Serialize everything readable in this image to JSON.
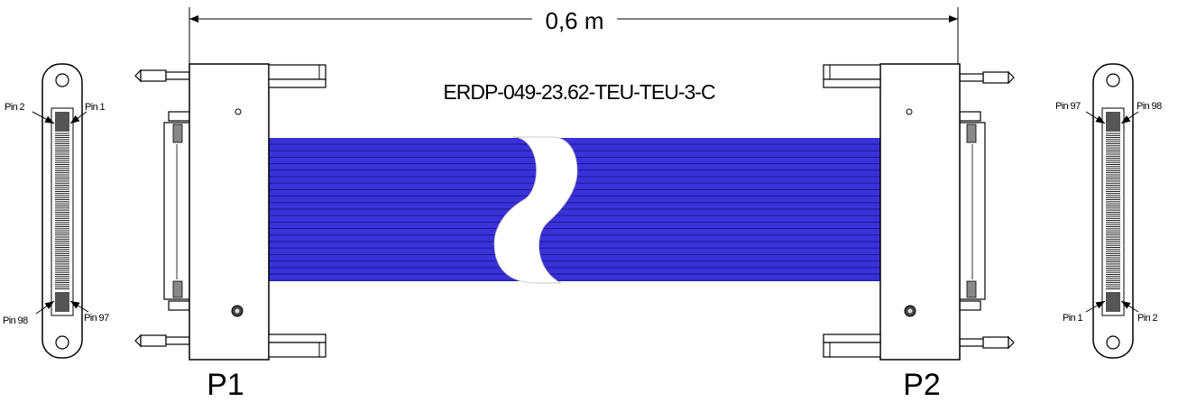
{
  "dimension": {
    "length": "0,6 m"
  },
  "part_number": "ERDP-049-23.62-TEU-TEU-3-C",
  "connectors": {
    "left_label": "P1",
    "right_label": "P2"
  },
  "pin_labels": {
    "p1_top_left": "Pin 2",
    "p1_top_right": "Pin 1",
    "p1_bottom_left": "Pin 98",
    "p1_bottom_right": "Pin 97",
    "p2_top_left": "Pin 97",
    "p2_top_right": "Pin 98",
    "p2_bottom_left": "Pin 1",
    "p2_bottom_right": "Pin 2"
  },
  "colors": {
    "cable": "#3a31d8",
    "cable_stripe": "#1a1690",
    "outline": "#000000"
  }
}
